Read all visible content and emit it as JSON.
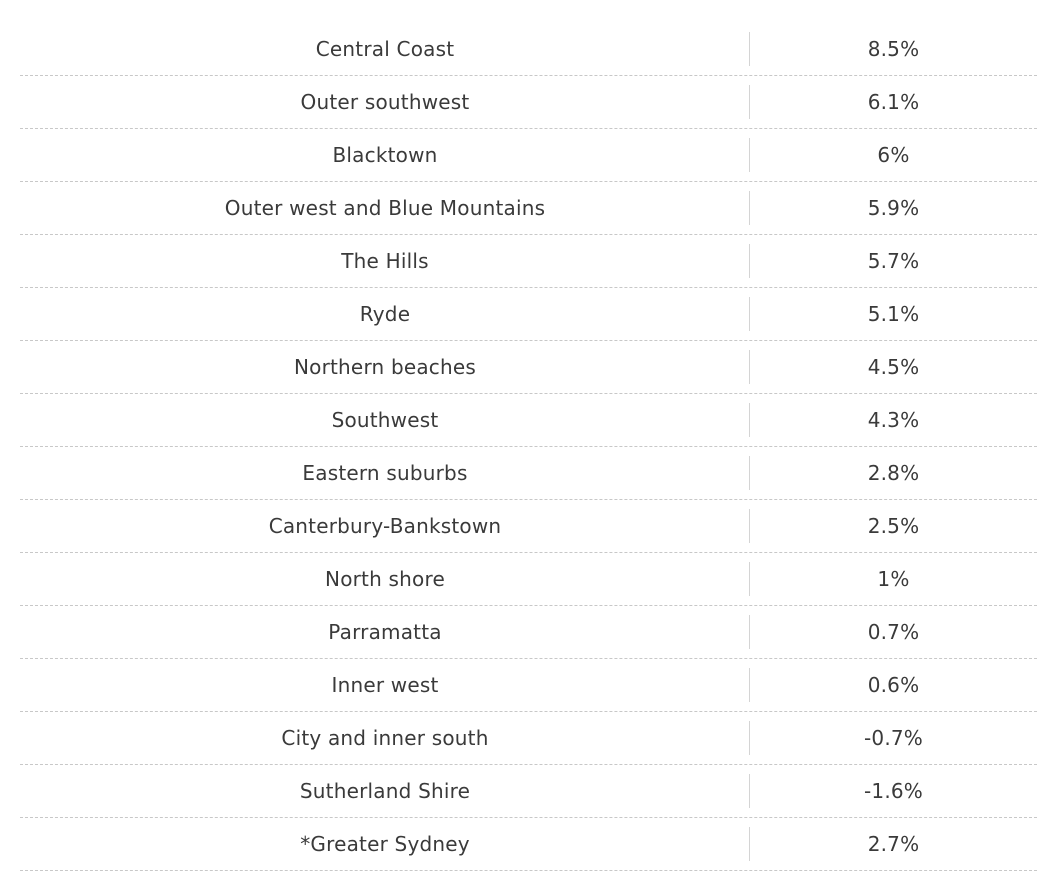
{
  "chart_data": {
    "type": "table",
    "columns": [
      "",
      ""
    ],
    "rows": [
      {
        "region": "Central Coast",
        "value": "8.5%"
      },
      {
        "region": "Outer southwest",
        "value": "6.1%"
      },
      {
        "region": "Blacktown",
        "value": "6%"
      },
      {
        "region": "Outer west and Blue Mountains",
        "value": "5.9%"
      },
      {
        "region": "The Hills",
        "value": "5.7%"
      },
      {
        "region": "Ryde",
        "value": "5.1%"
      },
      {
        "region": "Northern beaches",
        "value": "4.5%"
      },
      {
        "region": "Southwest",
        "value": "4.3%"
      },
      {
        "region": "Eastern suburbs",
        "value": "2.8%"
      },
      {
        "region": "Canterbury-Bankstown",
        "value": "2.5%"
      },
      {
        "region": "North shore",
        "value": "1%"
      },
      {
        "region": "Parramatta",
        "value": "0.7%"
      },
      {
        "region": "Inner west",
        "value": "0.6%"
      },
      {
        "region": "City and inner south",
        "value": "-0.7%"
      },
      {
        "region": "Sutherland Shire",
        "value": "-1.6%"
      },
      {
        "region": "*Greater Sydney",
        "value": "2.7%"
      }
    ]
  }
}
